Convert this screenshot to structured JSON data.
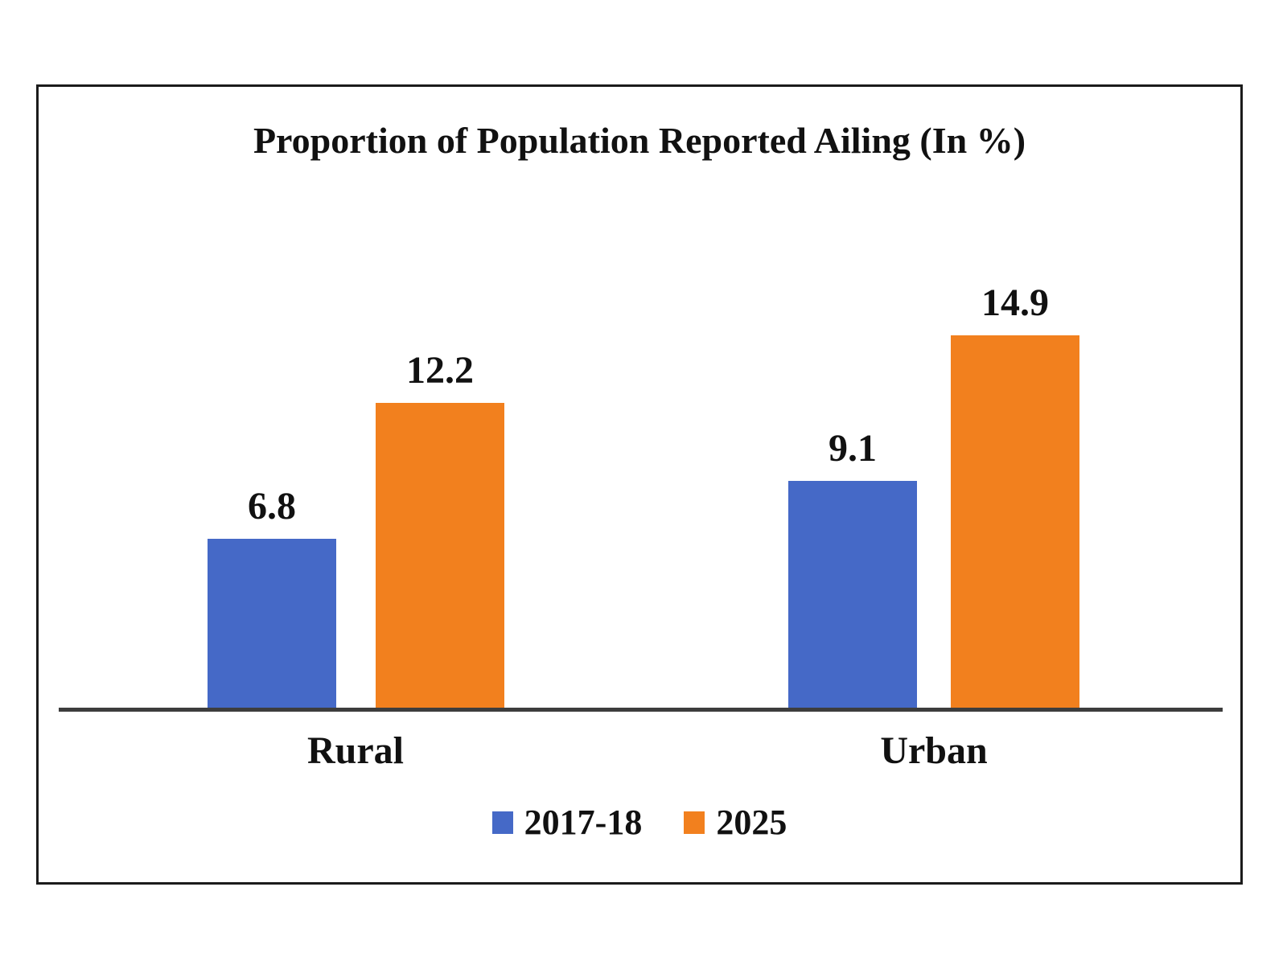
{
  "chart_data": {
    "type": "bar",
    "title": "Proportion of Population Reported Ailing (In %)",
    "categories": [
      "Rural",
      "Urban"
    ],
    "series": [
      {
        "name": "2017-18",
        "color": "#4569C7",
        "values": [
          6.8,
          9.1
        ]
      },
      {
        "name": "2025",
        "color": "#F2801E",
        "values": [
          12.2,
          14.9
        ]
      }
    ],
    "ylim": [
      0,
      15.8
    ],
    "value_labels": true,
    "legend_position": "bottom",
    "grid": false,
    "axis_color": "#3d3d3d",
    "text_color": "#111111"
  }
}
